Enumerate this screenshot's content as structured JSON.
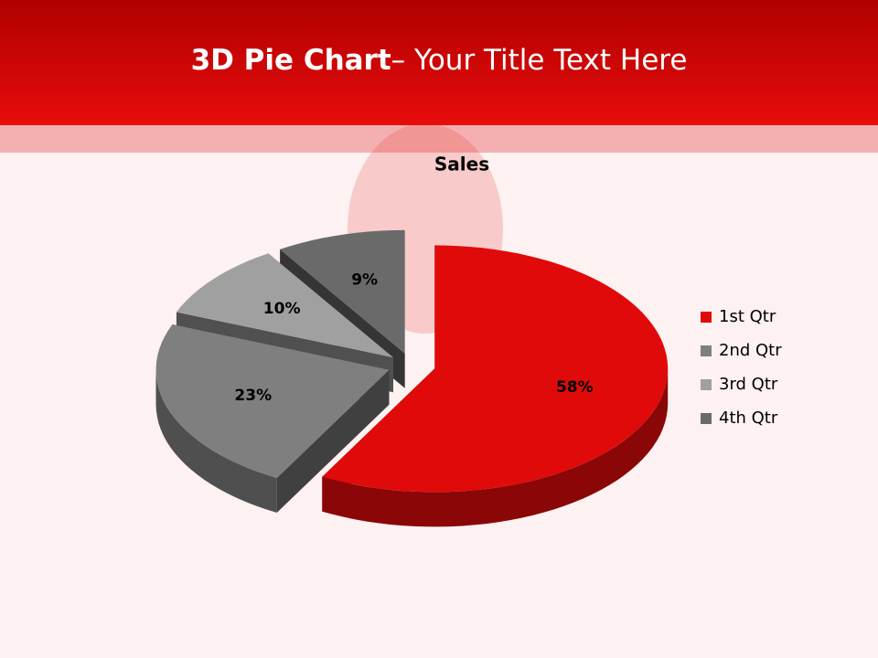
{
  "slide": {
    "title_bold": "3D Pie Chart",
    "title_rest": "– Your Title Text Here"
  },
  "chart_data": {
    "type": "pie",
    "title": "Sales",
    "categories": [
      "1st Qtr",
      "2nd Qtr",
      "3rd Qtr",
      "4th Qtr"
    ],
    "values": [
      58,
      23,
      10,
      9
    ],
    "value_labels": [
      "58%",
      "23%",
      "10%",
      "9%"
    ],
    "colors": [
      "#e00a0a",
      "#7f7f7f",
      "#a0a0a0",
      "#6a6a6a"
    ],
    "legend": "right"
  }
}
